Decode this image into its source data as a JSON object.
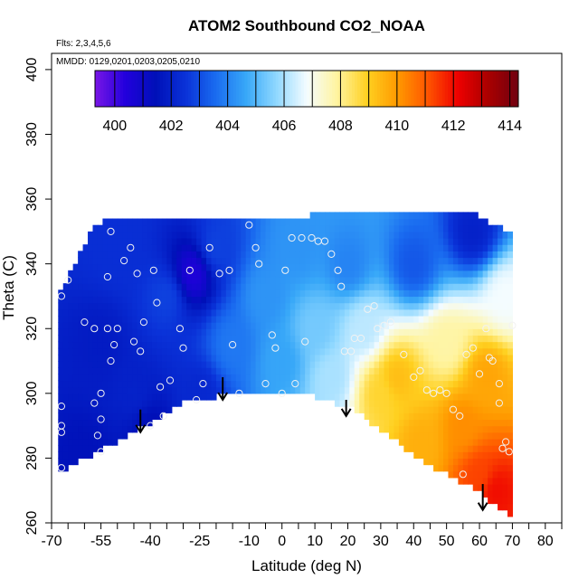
{
  "chart_data": {
    "type": "heatmap",
    "title": "ATOM2 Southbound CO2_NOAA",
    "annotations": [
      "Flts: 2,3,4,5,6",
      "MMDD: 0129,0201,0203,0205,0210"
    ],
    "xlabel": "Latitude (deg N)",
    "ylabel": "Theta (C)",
    "xlim": [
      -70,
      85
    ],
    "ylim": [
      260,
      405
    ],
    "x_ticks": [
      -70,
      -55,
      -40,
      -25,
      -10,
      0,
      10,
      20,
      30,
      40,
      50,
      60,
      70,
      80
    ],
    "x_minor_ticks": [
      -65,
      -60,
      -50,
      -45,
      -35,
      -30,
      -20,
      -15,
      -5,
      5,
      15,
      25,
      35,
      45,
      55,
      65,
      75,
      85
    ],
    "x_tick_labels": [
      "-70",
      "-55",
      "-40",
      "-25",
      "-10",
      "0",
      "10",
      "20",
      "30",
      "40",
      "50",
      "60",
      "70",
      "80"
    ],
    "y_ticks": [
      260,
      280,
      300,
      320,
      340,
      360,
      380,
      400
    ],
    "y_tick_labels": [
      "260",
      "280",
      "300",
      "320",
      "340",
      "360",
      "380",
      "400"
    ],
    "colorbar": {
      "range": [
        399.3,
        414.3
      ],
      "ticks": [
        400,
        402,
        404,
        406,
        408,
        410,
        412,
        414
      ],
      "tick_labels": [
        "400",
        "402",
        "404",
        "406",
        "408",
        "410",
        "412",
        "414"
      ],
      "colors": [
        "#7a16e6",
        "#2200dd",
        "#0010b8",
        "#0a32d8",
        "#1a6cf0",
        "#38a8f8",
        "#90d8ff",
        "#f4fcff",
        "#fff4a0",
        "#ffd020",
        "#ff9a00",
        "#ff5500",
        "#ee0000",
        "#aa0000",
        "#700010"
      ]
    },
    "domain": {
      "top": [
        [
          -68,
          331
        ],
        [
          -66,
          334
        ],
        [
          -64,
          338
        ],
        [
          -62,
          342
        ],
        [
          -60,
          346
        ],
        [
          -58,
          350
        ],
        [
          -56,
          352
        ],
        [
          -54,
          353
        ],
        [
          -10,
          353
        ],
        [
          8,
          353
        ],
        [
          8,
          355
        ],
        [
          60,
          355
        ],
        [
          64,
          352
        ],
        [
          70,
          350
        ],
        [
          70,
          262
        ]
      ],
      "bottom": [
        [
          -68,
          275
        ],
        [
          -60,
          280
        ],
        [
          -50,
          285
        ],
        [
          -40,
          291
        ],
        [
          -30,
          297
        ],
        [
          -20,
          299
        ],
        [
          -10,
          301
        ],
        [
          0,
          300
        ],
        [
          10,
          299
        ],
        [
          20,
          296
        ],
        [
          30,
          289
        ],
        [
          40,
          281
        ],
        [
          50,
          275
        ],
        [
          60,
          270
        ],
        [
          66,
          264
        ],
        [
          70,
          262
        ]
      ]
    },
    "field_anchors": [
      {
        "lat": -60,
        "theta": 280,
        "co2": 401.5
      },
      {
        "lat": -55,
        "theta": 315,
        "co2": 401.8
      },
      {
        "lat": -50,
        "theta": 345,
        "co2": 402.4
      },
      {
        "lat": -45,
        "theta": 300,
        "co2": 402.0
      },
      {
        "lat": -40,
        "theta": 289,
        "co2": 401.4
      },
      {
        "lat": -35,
        "theta": 330,
        "co2": 402.8
      },
      {
        "lat": -27,
        "theta": 337,
        "co2": 400.5
      },
      {
        "lat": -25,
        "theta": 300,
        "co2": 402.2
      },
      {
        "lat": -20,
        "theta": 345,
        "co2": 402.8
      },
      {
        "lat": -15,
        "theta": 315,
        "co2": 403.8
      },
      {
        "lat": -5,
        "theta": 330,
        "co2": 404.3
      },
      {
        "lat": 0,
        "theta": 310,
        "co2": 404.6
      },
      {
        "lat": 5,
        "theta": 345,
        "co2": 404.3
      },
      {
        "lat": 10,
        "theta": 320,
        "co2": 405.4
      },
      {
        "lat": 15,
        "theta": 305,
        "co2": 406.0
      },
      {
        "lat": 20,
        "theta": 340,
        "co2": 404.0
      },
      {
        "lat": 25,
        "theta": 320,
        "co2": 406.2
      },
      {
        "lat": 30,
        "theta": 300,
        "co2": 408.8
      },
      {
        "lat": 35,
        "theta": 305,
        "co2": 409.3
      },
      {
        "lat": 40,
        "theta": 340,
        "co2": 403.2
      },
      {
        "lat": 42,
        "theta": 285,
        "co2": 409.6
      },
      {
        "lat": 50,
        "theta": 315,
        "co2": 407.8
      },
      {
        "lat": 55,
        "theta": 290,
        "co2": 410.2
      },
      {
        "lat": 58,
        "theta": 350,
        "co2": 402.0
      },
      {
        "lat": 60,
        "theta": 275,
        "co2": 411.3
      },
      {
        "lat": 62,
        "theta": 305,
        "co2": 409.8
      },
      {
        "lat": 65,
        "theta": 270,
        "co2": 412.0
      },
      {
        "lat": 68,
        "theta": 330,
        "co2": 406.8
      }
    ],
    "arrows": [
      {
        "lat": -43,
        "theta_top": 295,
        "theta_tip": 288
      },
      {
        "lat": -18,
        "theta_top": 305,
        "theta_tip": 298
      },
      {
        "lat": 19.5,
        "theta_top": 298,
        "theta_tip": 293
      },
      {
        "lat": 61,
        "theta_top": 272,
        "theta_tip": 264
      }
    ],
    "observations": [
      [
        -67,
        330
      ],
      [
        -67,
        296
      ],
      [
        -67,
        290
      ],
      [
        -67,
        288
      ],
      [
        -67,
        277
      ],
      [
        -65,
        335
      ],
      [
        -60,
        322
      ],
      [
        -57,
        320
      ],
      [
        -57,
        297
      ],
      [
        -56,
        287
      ],
      [
        -55,
        282
      ],
      [
        -55,
        300
      ],
      [
        -55,
        292
      ],
      [
        -53,
        336
      ],
      [
        -52,
        350
      ],
      [
        -53,
        320
      ],
      [
        -52,
        310
      ],
      [
        -51,
        315
      ],
      [
        -50,
        320
      ],
      [
        -48,
        341
      ],
      [
        -46,
        345
      ],
      [
        -45,
        316
      ],
      [
        -44,
        337
      ],
      [
        -43,
        313
      ],
      [
        -42,
        322
      ],
      [
        -40,
        290
      ],
      [
        -39,
        338
      ],
      [
        -38,
        328
      ],
      [
        -37,
        302
      ],
      [
        -36,
        293
      ],
      [
        -34,
        304
      ],
      [
        -31,
        320
      ],
      [
        -30,
        314
      ],
      [
        -28,
        338
      ],
      [
        -26,
        298
      ],
      [
        -24,
        303
      ],
      [
        -22,
        345
      ],
      [
        -19,
        337
      ],
      [
        -16,
        338
      ],
      [
        -15,
        315
      ],
      [
        -13,
        300
      ],
      [
        -10,
        352
      ],
      [
        -8,
        345
      ],
      [
        -7,
        340
      ],
      [
        -5,
        303
      ],
      [
        -3,
        318
      ],
      [
        -2,
        314
      ],
      [
        0,
        300
      ],
      [
        1,
        338
      ],
      [
        3,
        348
      ],
      [
        4,
        303
      ],
      [
        6,
        348
      ],
      [
        7,
        316
      ],
      [
        9,
        348
      ],
      [
        11,
        347
      ],
      [
        13,
        347
      ],
      [
        15,
        343
      ],
      [
        17,
        338
      ],
      [
        18,
        333
      ],
      [
        19,
        313
      ],
      [
        21,
        313
      ],
      [
        22,
        317
      ],
      [
        24,
        317
      ],
      [
        26,
        326
      ],
      [
        28,
        327
      ],
      [
        29,
        320
      ],
      [
        31,
        321
      ],
      [
        33,
        322
      ],
      [
        37,
        312
      ],
      [
        40,
        305
      ],
      [
        42,
        307
      ],
      [
        44,
        301
      ],
      [
        46,
        300
      ],
      [
        48,
        301
      ],
      [
        50,
        300
      ],
      [
        52,
        295
      ],
      [
        54,
        293
      ],
      [
        56,
        312
      ],
      [
        58,
        314
      ],
      [
        60,
        306
      ],
      [
        62,
        320
      ],
      [
        63,
        311
      ],
      [
        64,
        310
      ],
      [
        66,
        303
      ],
      [
        66,
        297
      ],
      [
        67,
        283
      ],
      [
        68,
        285
      ],
      [
        69,
        282
      ],
      [
        70,
        321
      ],
      [
        55,
        275
      ]
    ]
  }
}
